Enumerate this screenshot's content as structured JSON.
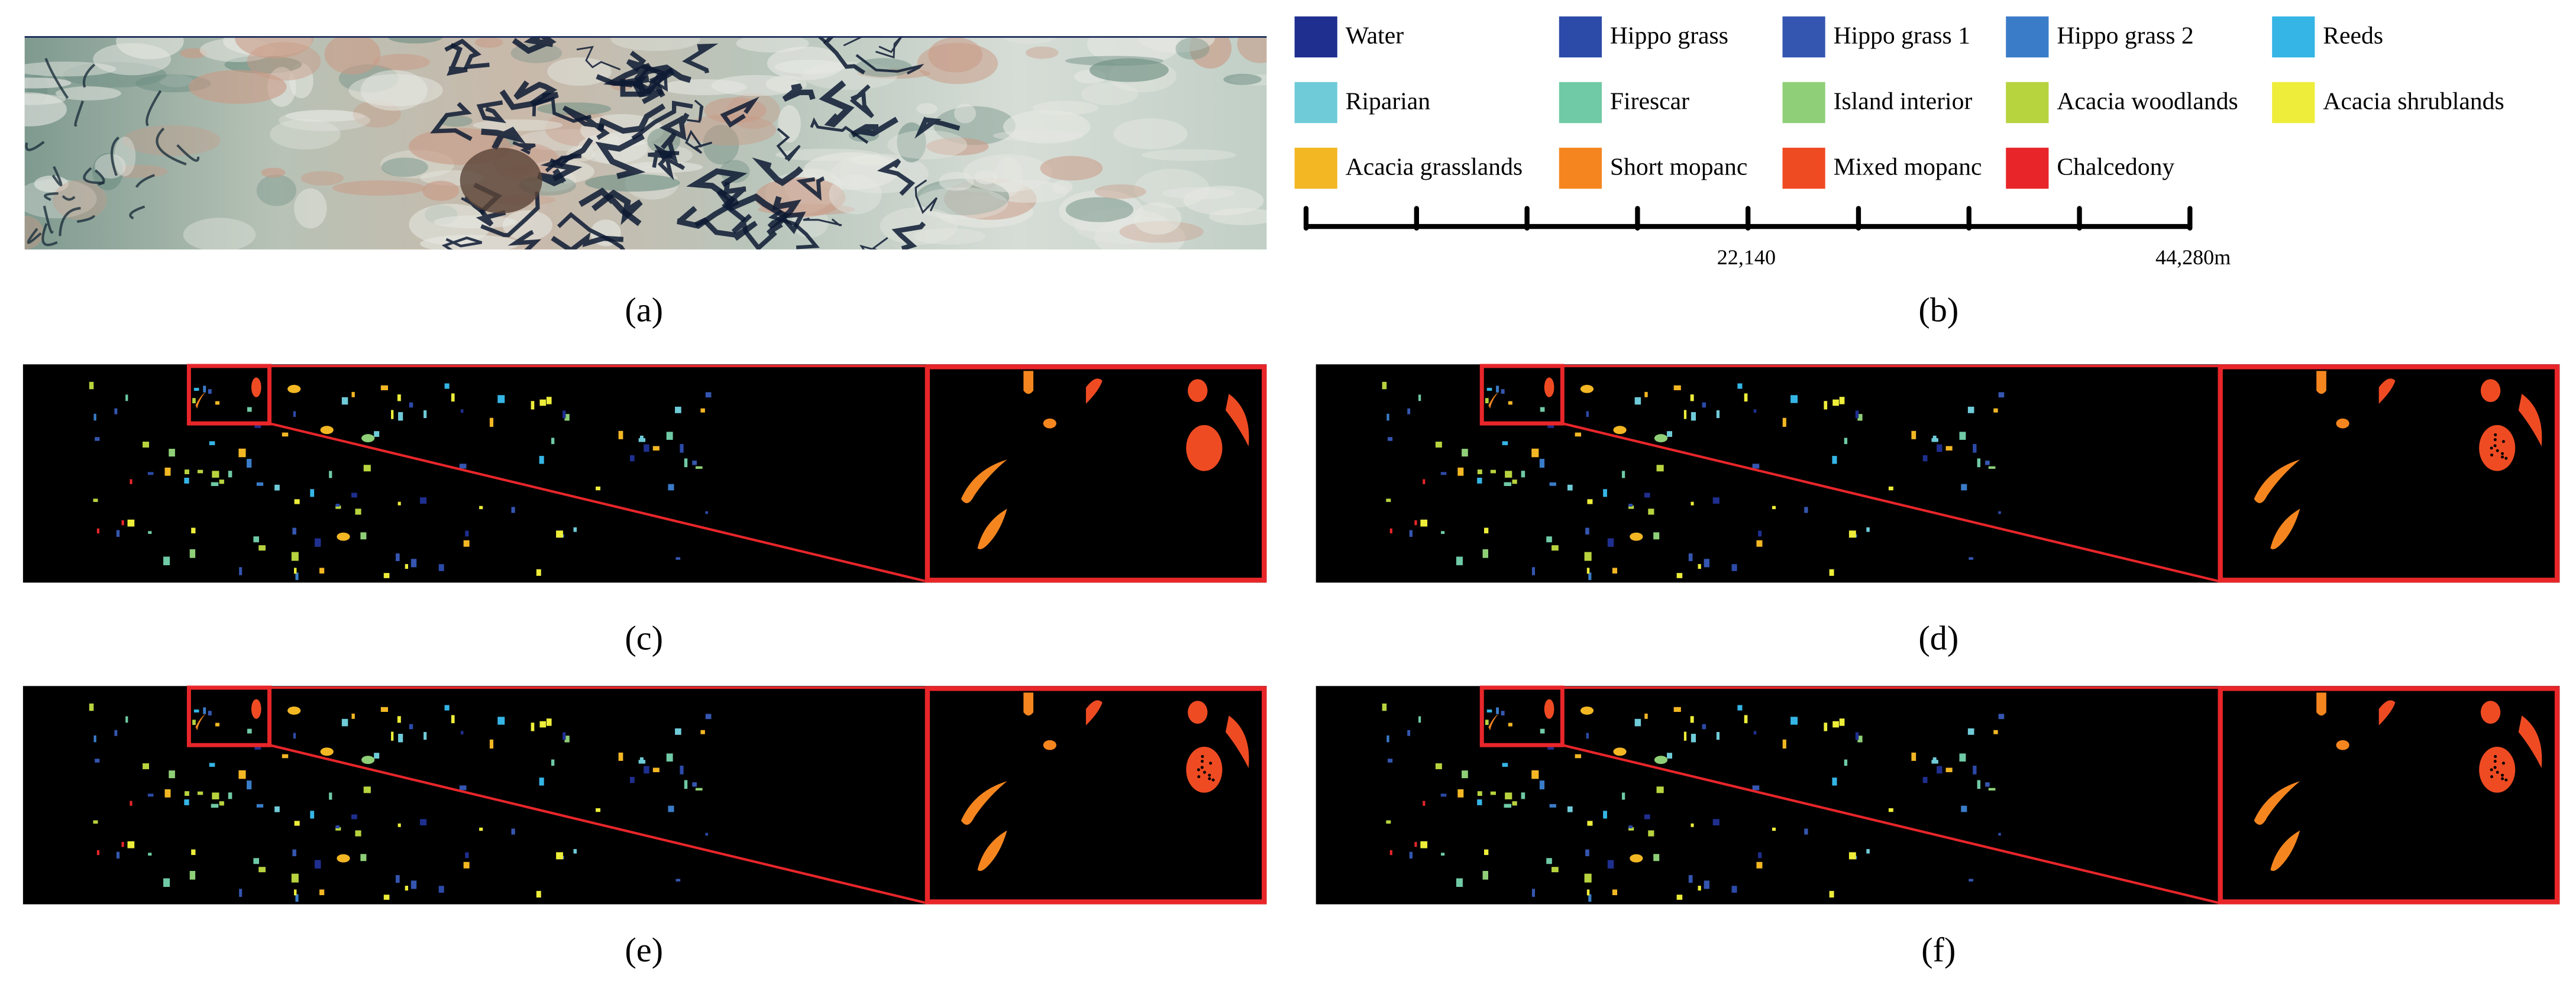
{
  "legend": {
    "items": [
      {
        "name": "Water",
        "color": "#1f2f8f"
      },
      {
        "name": "Hippo grass",
        "color": "#2c4aa8"
      },
      {
        "name": "Hippo grass 1",
        "color": "#3556b0"
      },
      {
        "name": "Hippo grass 2",
        "color": "#3a7cc8"
      },
      {
        "name": "Reeds",
        "color": "#35b5e5"
      },
      {
        "name": "Riparian",
        "color": "#6fcbd8"
      },
      {
        "name": "Firescar",
        "color": "#6fcaa5"
      },
      {
        "name": "Island interior",
        "color": "#8fcf78"
      },
      {
        "name": "Acacia woodlands",
        "color": "#b7d33e"
      },
      {
        "name": "Acacia shrublands",
        "color": "#eded3a"
      },
      {
        "name": "Acacia grasslands",
        "color": "#f3b724"
      },
      {
        "name": "Short mopanc",
        "color": "#f5861f"
      },
      {
        "name": "Mixed mopanc",
        "color": "#ef4b23"
      },
      {
        "name": "Chalcedony",
        "color": "#e8262a"
      }
    ]
  },
  "scale_bar": {
    "labels": [
      "22,140",
      "44,280m"
    ]
  },
  "captions": [
    "(a)",
    "(b)",
    "(c)",
    "(d)",
    "(e)",
    "(f)"
  ]
}
